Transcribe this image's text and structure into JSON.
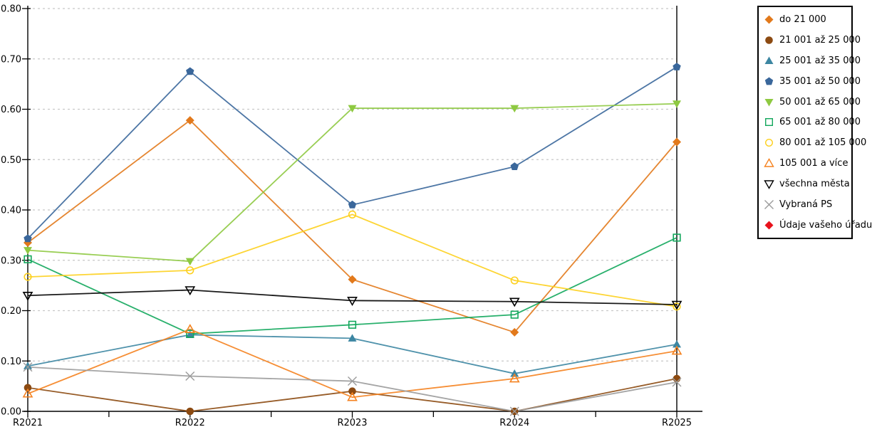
{
  "chart_data": {
    "type": "line",
    "title": "",
    "legend_position": "right",
    "grid": true,
    "categories": [
      "R2021",
      "R2022",
      "R2023",
      "R2024",
      "R2025"
    ],
    "y_axis": {
      "min": 0.0,
      "max": 0.8,
      "step": 0.1,
      "tick_labels": [
        "0.00",
        "0.10",
        "0.20",
        "0.30",
        "0.40",
        "0.50",
        "0.60",
        "0.70",
        "0.80"
      ]
    },
    "series": [
      {
        "key": "do-21-000",
        "name": "do 21 000",
        "color": "#e2791b",
        "marker": "diamond",
        "filled": true,
        "values": [
          0.335,
          0.578,
          0.262,
          0.157,
          0.535
        ]
      },
      {
        "key": "21-001-az-25-000",
        "name": "21 001 až 25 000",
        "color": "#8c4a11",
        "marker": "circle",
        "filled": true,
        "values": [
          0.047,
          0.0,
          0.04,
          0.0,
          0.065
        ]
      },
      {
        "key": "25-001-az-35-000",
        "name": "25 001 až 35 000",
        "color": "#3c86a2",
        "marker": "triangle-up",
        "filled": true,
        "values": [
          0.09,
          0.152,
          0.145,
          0.075,
          0.133
        ]
      },
      {
        "key": "35-001-az-50-000",
        "name": "35 001 až 50 000",
        "color": "#3a679b",
        "marker": "pentagon",
        "filled": true,
        "values": [
          0.343,
          0.675,
          0.41,
          0.486,
          0.684
        ]
      },
      {
        "key": "50-001-az-65-000",
        "name": "50 001 až 65 000",
        "color": "#8ec941",
        "marker": "triangle-down",
        "filled": true,
        "values": [
          0.32,
          0.298,
          0.602,
          0.602,
          0.611
        ]
      },
      {
        "key": "65-001-az-80-000",
        "name": "65 001 až 80 000",
        "color": "#12a75c",
        "marker": "square",
        "filled": false,
        "values": [
          0.302,
          0.154,
          0.172,
          0.192,
          0.345
        ]
      },
      {
        "key": "80-001-az-105-000",
        "name": "80 001 až 105 000",
        "color": "#fdd01e",
        "marker": "circle",
        "filled": false,
        "values": [
          0.267,
          0.28,
          0.391,
          0.26,
          0.208
        ]
      },
      {
        "key": "105-001-a-vice",
        "name": "105 001 a více",
        "color": "#f5821f",
        "marker": "triangle-up",
        "filled": false,
        "values": [
          0.035,
          0.163,
          0.028,
          0.065,
          0.12
        ]
      },
      {
        "key": "vsechna-mesta",
        "name": "všechna města",
        "color": "#000000",
        "marker": "triangle-down",
        "filled": false,
        "values": [
          0.23,
          0.241,
          0.22,
          0.218,
          0.212
        ]
      },
      {
        "key": "vybrana-ps",
        "name": "Vybraná PS",
        "color": "#9b9b9b",
        "marker": "x",
        "filled": false,
        "values": [
          0.088,
          0.07,
          0.06,
          0.0,
          0.058
        ]
      },
      {
        "key": "udaje-vaseho-uradu",
        "name": "Údaje vašeho úřadu",
        "color": "#e8121c",
        "marker": "diamond",
        "filled": true,
        "values": [
          null,
          null,
          null,
          null,
          null
        ]
      }
    ]
  }
}
